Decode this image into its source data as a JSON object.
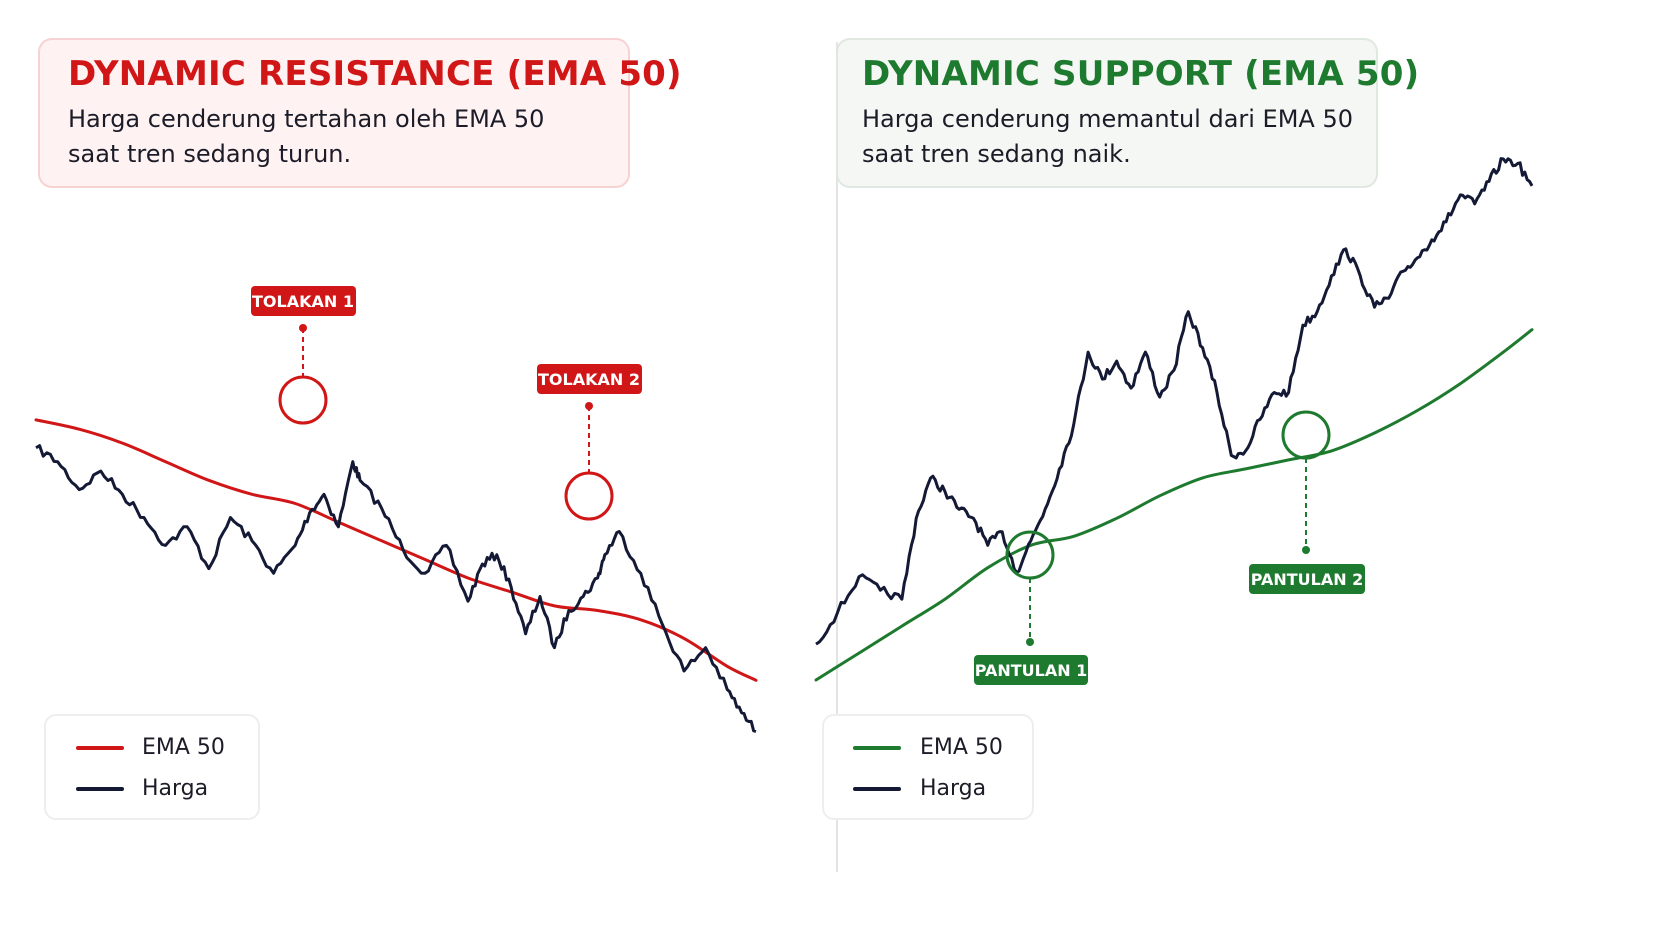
{
  "colors": {
    "resistance": "#d01616",
    "support": "#1e7a2e",
    "price": "#141a36",
    "resistance_bg": "#fff2f2",
    "resistance_border": "#f7d2d2",
    "support_bg": "#f4f7f4",
    "support_border": "#dfe9df"
  },
  "left": {
    "title": "DYNAMIC RESISTANCE (EMA 50)",
    "desc_line1": "Harga cenderung tertahan oleh EMA 50",
    "desc_line2": "saat tren sedang turun.",
    "legend": {
      "ema": "EMA 50",
      "price": "Harga"
    },
    "markers": [
      "TOLAKAN 1",
      "TOLAKAN 2"
    ]
  },
  "right": {
    "title": "DYNAMIC SUPPORT (EMA 50)",
    "desc_line1": "Harga cenderung memantul dari EMA 50",
    "desc_line2": "saat tren sedang naik.",
    "legend": {
      "ema": "EMA 50",
      "price": "Harga"
    },
    "markers": [
      "PANTULAN 1",
      "PANTULAN 2"
    ]
  },
  "chart_data": [
    {
      "type": "line",
      "title": "DYNAMIC RESISTANCE (EMA 50)",
      "series": [
        {
          "name": "EMA 50",
          "x": [
            0,
            6,
            12,
            18,
            24,
            30,
            36,
            42,
            48,
            54,
            60,
            66,
            72,
            78,
            84,
            90,
            96,
            100
          ],
          "values": [
            71,
            69,
            66,
            62,
            58,
            55,
            53,
            49,
            45,
            41,
            37,
            34,
            31,
            30,
            28,
            24,
            18,
            15
          ]
        },
        {
          "name": "Harga",
          "x": [
            0,
            3,
            6,
            9,
            12,
            15,
            18,
            21,
            24,
            27,
            30,
            33,
            36,
            38,
            40,
            42,
            44,
            45,
            48,
            51,
            54,
            57,
            60,
            62,
            64,
            66,
            68,
            70,
            72,
            74,
            76,
            78,
            79,
            81,
            84,
            87,
            90,
            93,
            96,
            98,
            100
          ],
          "values": [
            65,
            62,
            56,
            60,
            55,
            50,
            44,
            48,
            39,
            50,
            45,
            38,
            44,
            51,
            55,
            48,
            62,
            58,
            52,
            43,
            38,
            44,
            32,
            40,
            42,
            35,
            25,
            33,
            22,
            30,
            33,
            37,
            42,
            47,
            38,
            27,
            17,
            22,
            13,
            8,
            4
          ]
        }
      ],
      "annotations": [
        "TOLAKAN 1",
        "TOLAKAN 2"
      ]
    },
    {
      "type": "line",
      "title": "DYNAMIC SUPPORT (EMA 50)",
      "series": [
        {
          "name": "EMA 50",
          "x": [
            0,
            6,
            12,
            18,
            24,
            30,
            36,
            42,
            48,
            54,
            60,
            66,
            72,
            78,
            84,
            90,
            96,
            100
          ],
          "values": [
            0,
            6,
            12,
            18,
            25,
            30,
            32,
            36,
            41,
            45,
            47,
            49,
            51,
            55,
            60,
            66,
            73,
            78
          ]
        },
        {
          "name": "Harga",
          "x": [
            0,
            3,
            6,
            9,
            12,
            14,
            16,
            18,
            20,
            22,
            24,
            26,
            28,
            30,
            32,
            34,
            36,
            38,
            40,
            42,
            44,
            46,
            48,
            50,
            52,
            54,
            56,
            58,
            60,
            62,
            64,
            66,
            68,
            70,
            72,
            74,
            76,
            78,
            80,
            82,
            84,
            86,
            88,
            90,
            92,
            94,
            96,
            98,
            100
          ],
          "values": [
            8,
            15,
            23,
            20,
            18,
            36,
            45,
            42,
            38,
            36,
            30,
            33,
            24,
            31,
            38,
            47,
            57,
            73,
            67,
            71,
            65,
            73,
            63,
            69,
            82,
            74,
            64,
            50,
            51,
            58,
            64,
            64,
            79,
            82,
            90,
            96,
            90,
            83,
            85,
            91,
            94,
            98,
            102,
            108,
            106,
            111,
            116,
            115,
            110
          ]
        }
      ],
      "annotations": [
        "PANTULAN 1",
        "PANTULAN 2"
      ]
    }
  ]
}
